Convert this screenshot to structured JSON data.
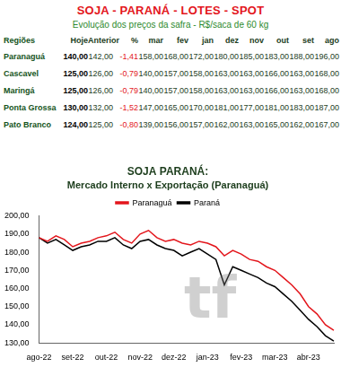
{
  "header": {
    "title": "SOJA - PARANÁ - LOTES - SPOT",
    "subtitle": "Evolução dos preços da safra - R$/saca de 60 kg"
  },
  "table": {
    "columns": [
      "Regiões",
      "Hoje",
      "Anterior",
      "%",
      "mar",
      "fev",
      "jan",
      "dez",
      "nov",
      "out",
      "set",
      "ago"
    ],
    "rows": [
      [
        "Paranaguá",
        "140,00",
        "142,00",
        "-1,41",
        "158,00",
        "168,00",
        "172,00",
        "180,00",
        "185,00",
        "183,00",
        "188,00",
        "196,00"
      ],
      [
        "Cascavel",
        "125,00",
        "126,00",
        "-0,79",
        "140,00",
        "157,00",
        "158,00",
        "163,00",
        "163,00",
        "166,00",
        "163,00",
        "168,00"
      ],
      [
        "Maringá",
        "125,00",
        "126,00",
        "-0,79",
        "140,00",
        "157,00",
        "158,00",
        "163,00",
        "163,00",
        "166,00",
        "163,00",
        "168,00"
      ],
      [
        "Ponta Grossa",
        "130,00",
        "132,00",
        "-1,52",
        "147,00",
        "165,00",
        "170,00",
        "181,00",
        "177,00",
        "181,00",
        "183,00",
        "187,00"
      ],
      [
        "Pato Branco",
        "124,00",
        "125,00",
        "-0,80",
        "139,00",
        "156,00",
        "157,00",
        "162,00",
        "163,00",
        "165,00",
        "162,00",
        "167,00"
      ]
    ]
  },
  "watermark": "tf",
  "chart_data": {
    "type": "line",
    "title": "SOJA PARANÁ:",
    "subtitle": "Mercado Interno x Exportação (Paranaguá)",
    "categories": [
      "ago-22",
      null,
      null,
      null,
      "set-22",
      null,
      null,
      null,
      "out-22",
      null,
      null,
      null,
      "nov-22",
      null,
      null,
      null,
      "dez-22",
      null,
      null,
      null,
      "jan-23",
      null,
      null,
      null,
      "fev-23",
      null,
      null,
      null,
      "mar-23",
      null,
      null,
      null,
      "abr-23",
      null,
      null,
      null
    ],
    "series": [
      {
        "name": "Paranaguá",
        "color": "#e3161c",
        "values": [
          188,
          186,
          189,
          187,
          183,
          185,
          186,
          188,
          189,
          191,
          187,
          185,
          190,
          192,
          188,
          186,
          187,
          185,
          184,
          186,
          185,
          183,
          178,
          181,
          179,
          176,
          175,
          172,
          170,
          166,
          162,
          157,
          150,
          146,
          140,
          137
        ]
      },
      {
        "name": "Paraná",
        "color": "#000000",
        "values": [
          188,
          185,
          187,
          184,
          181,
          183,
          184,
          186,
          186,
          188,
          184,
          182,
          186,
          187,
          184,
          182,
          181,
          178,
          180,
          182,
          179,
          176,
          162,
          172,
          170,
          168,
          166,
          163,
          161,
          157,
          153,
          148,
          143,
          139,
          134,
          131
        ]
      }
    ],
    "ylim": [
      130,
      200
    ],
    "yticks": [
      {
        "value": 130,
        "label": "130,00"
      },
      {
        "value": 140,
        "label": "140,00"
      },
      {
        "value": 150,
        "label": "150,00"
      },
      {
        "value": 160,
        "label": "160,00"
      },
      {
        "value": 170,
        "label": "170,00"
      },
      {
        "value": 180,
        "label": "180,00"
      },
      {
        "value": 190,
        "label": "190,00"
      },
      {
        "value": 200,
        "label": "200,00"
      }
    ],
    "legend": "top",
    "grid": false
  }
}
